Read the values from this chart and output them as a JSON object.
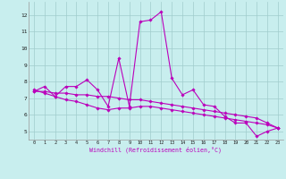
{
  "xlabel": "Windchill (Refroidissement éolien,°C)",
  "xlim": [
    -0.5,
    23.5
  ],
  "ylim": [
    4.5,
    12.8
  ],
  "yticks": [
    5,
    6,
    7,
    8,
    9,
    10,
    11,
    12
  ],
  "xticks": [
    0,
    1,
    2,
    3,
    4,
    5,
    6,
    7,
    8,
    9,
    10,
    11,
    12,
    13,
    14,
    15,
    16,
    17,
    18,
    19,
    20,
    21,
    22,
    23
  ],
  "bg_color": "#c8eeee",
  "line_color": "#bb00bb",
  "grid_color": "#a0cccc",
  "series1": [
    7.4,
    7.7,
    7.1,
    7.7,
    7.7,
    8.1,
    7.5,
    6.5,
    9.4,
    6.5,
    11.6,
    11.7,
    12.2,
    8.2,
    7.2,
    7.5,
    6.6,
    6.5,
    5.9,
    5.5,
    5.5,
    4.7,
    5.0,
    5.2
  ],
  "series2": [
    7.5,
    7.3,
    7.1,
    6.9,
    6.8,
    6.6,
    6.4,
    6.3,
    6.4,
    6.4,
    6.5,
    6.5,
    6.4,
    6.3,
    6.2,
    6.1,
    6.0,
    5.9,
    5.8,
    5.7,
    5.6,
    5.5,
    5.4,
    5.2
  ],
  "series3": [
    7.4,
    7.4,
    7.3,
    7.3,
    7.2,
    7.2,
    7.1,
    7.1,
    7.0,
    6.9,
    6.9,
    6.8,
    6.7,
    6.6,
    6.5,
    6.4,
    6.3,
    6.2,
    6.1,
    6.0,
    5.9,
    5.8,
    5.5,
    5.2
  ]
}
